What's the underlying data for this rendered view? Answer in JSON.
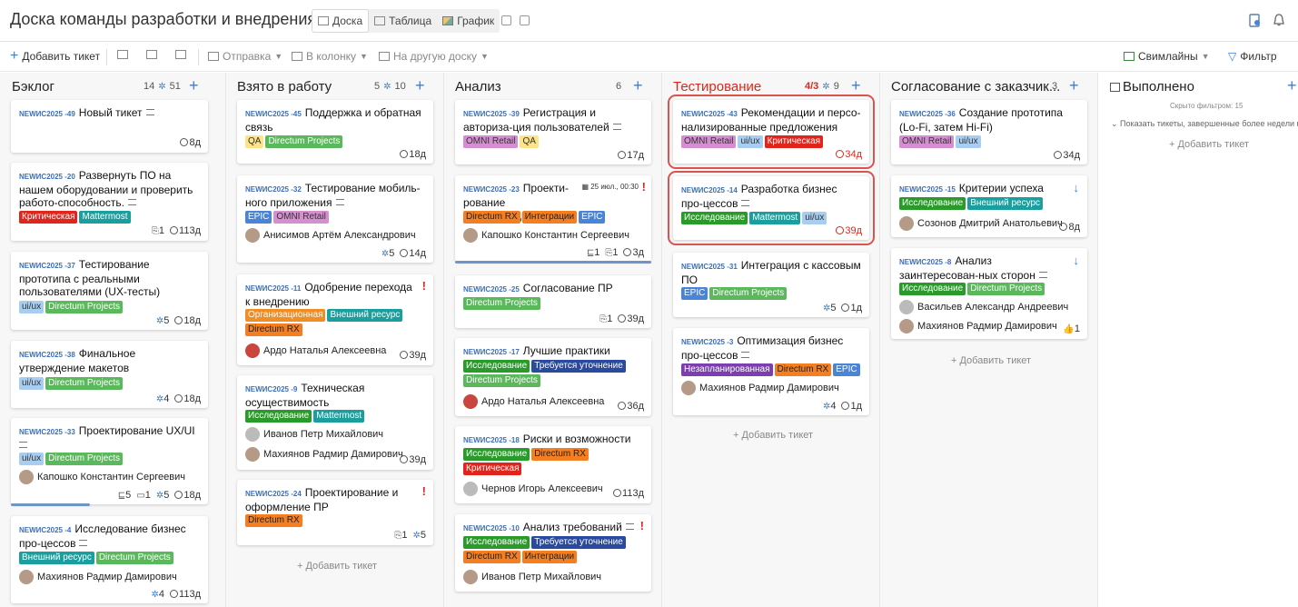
{
  "header": {
    "title": "Доска команды разработки и внедрения",
    "views": {
      "board": "Доска",
      "table": "Таблица",
      "chart": "График"
    }
  },
  "toolbar": {
    "add_ticket": "Добавить тикет",
    "send": "Отправка",
    "to_column": "В колонку",
    "to_board": "На другую доску",
    "swimlanes": "Свимлайны",
    "filter": "Фильтр"
  },
  "add_ticket_label": "Добавить тикет",
  "columns": [
    {
      "title": "Бэклог",
      "count": "14",
      "stories": "51"
    },
    {
      "title": "Взято в работу",
      "count": "5",
      "stories": "10"
    },
    {
      "title": "Анализ",
      "count": "6"
    },
    {
      "title": "Тестирование",
      "wip": "4/3",
      "stories": "9"
    },
    {
      "title": "Согласование с заказчик...",
      "count": "3"
    },
    {
      "title": "Выполнено",
      "hidden_note": "Скрыто фильтром: 15",
      "show_done_note": "Показать тикеты, завершенные более недели наз"
    }
  ],
  "cards": [
    {
      "id": "NEWИС2025 -49",
      "title": "Новый тикет",
      "time": "8д"
    },
    {
      "id": "NEWИС2025 -20",
      "title": "Развернуть ПО на нашем оборудовании и проверить работо-способность.",
      "tags": [
        "Критическая",
        "Mattermost"
      ],
      "attach": "1",
      "time": "113д"
    },
    {
      "id": "NEWИС2025 -37",
      "title": "Тестирование прототипа с реальными пользователями (UX-тесты)",
      "tags": [
        "ui/ux",
        "Directum Projects"
      ],
      "sp": "5",
      "time": "18д"
    },
    {
      "id": "NEWИС2025 -38",
      "title": "Финальное утверждение макетов",
      "tags": [
        "ui/ux",
        "Directum Projects"
      ],
      "sp": "4",
      "time": "18д"
    },
    {
      "id": "NEWИС2025 -33",
      "title": "Проектирование UX/UI",
      "tags": [
        "ui/ux",
        "Directum Projects"
      ],
      "assignee": "Капошко Константин Сергеевич",
      "sub": "5",
      "comments": "1",
      "sp": "5",
      "time": "18д"
    },
    {
      "id": "NEWИС2025 -4",
      "title": "Исследование бизнес про-цессов",
      "tags": [
        "Внешний ресурс",
        "Directum Projects"
      ],
      "assignee": "Махиянов Радмир Дамирович",
      "sp": "4",
      "time": "113д"
    },
    {
      "id": "NEWИС2025 -45",
      "title": "Поддержка и обратная связь",
      "tags": [
        "QA",
        "Directum Projects"
      ],
      "time": "18д"
    },
    {
      "id": "NEWИС2025 -32",
      "title": "Тестирование мобиль-ного приложения",
      "tags": [
        "EPIC",
        "OMNI Retail"
      ],
      "assignee": "Анисимов Артём Александрович",
      "sp": "5",
      "time": "14д"
    },
    {
      "id": "NEWИС2025 -11",
      "title": "Одобрение перехода к внедрению",
      "tags": [
        "Организационная",
        "Внешний ресурс",
        "Directum RX"
      ],
      "assignee": "Ардо Наталья Алексеевна",
      "time": "39д"
    },
    {
      "id": "NEWИС2025 -9",
      "title": "Техническая осуществимость",
      "tags": [
        "Исследование",
        "Mattermost"
      ],
      "assignee": "Иванов Петр Михайлович",
      "assignee2": "Махиянов Радмир Дамирович",
      "time": "39д"
    },
    {
      "id": "NEWИС2025 -24",
      "title": "Проектирование и оформление ПР",
      "tags": [
        "Directum RX"
      ],
      "attach": "1",
      "sp": "5"
    },
    {
      "id": "NEWИС2025 -39",
      "title": "Регистрация и авториза-ция пользователей",
      "tags": [
        "OMNI Retail",
        "QA"
      ],
      "time": "17д"
    },
    {
      "id": "NEWИС2025 -23",
      "title": "Проекти-рование модификаций",
      "due": "25 июл., 00:30",
      "tags": [
        "Directum RX",
        "Интеграции",
        "EPIC"
      ],
      "assignee": "Капошко Константин Сергеевич",
      "sub": "1",
      "attach": "1",
      "time": "3д"
    },
    {
      "id": "NEWИС2025 -25",
      "title": "Согласование ПР",
      "tags": [
        "Directum Projects"
      ],
      "attach": "1",
      "time": "39д"
    },
    {
      "id": "NEWИС2025 -17",
      "title": "Лучшие практики",
      "tags": [
        "Исследование",
        "Требуется уточнение",
        "Directum Projects"
      ],
      "assignee": "Ардо Наталья Алексеевна",
      "time": "36д"
    },
    {
      "id": "NEWИС2025 -18",
      "title": "Риски и возможности",
      "tags": [
        "Исследование",
        "Directum RX",
        "Критическая"
      ],
      "assignee": "Чернов Игорь Алексеевич",
      "time": "113д"
    },
    {
      "id": "NEWИС2025 -10",
      "title": "Анализ требований",
      "tags": [
        "Исследование",
        "Требуется уточнение",
        "Directum RX",
        "Интеграции"
      ],
      "assignee": "Иванов Петр Михайлович"
    },
    {
      "id": "NEWИС2025 -43",
      "title": "Рекомендации и персо-нализированные предложения",
      "tags": [
        "OMNI Retail",
        "ui/ux",
        "Критическая"
      ],
      "time": "34д"
    },
    {
      "id": "NEWИС2025 -14",
      "title": "Разработка бизнес про-цессов",
      "tags": [
        "Исследование",
        "Mattermost",
        "ui/ux"
      ],
      "time": "39д"
    },
    {
      "id": "NEWИС2025 -31",
      "title": "Интеграция с кассовым ПО",
      "tags": [
        "EPIC",
        "Directum Projects"
      ],
      "sp": "5",
      "time": "1д"
    },
    {
      "id": "NEWИС2025 -3",
      "title": "Оптимизация бизнес про-цессов",
      "tags": [
        "Незапланированная",
        "Directum RX",
        "EPIC"
      ],
      "assignee": "Махиянов Радмир Дамирович",
      "sp": "4",
      "time": "1д"
    },
    {
      "id": "NEWИС2025 -36",
      "title": "Создание прототипа (Lo-Fi, затем Hi-Fi)",
      "tags": [
        "OMNI Retail",
        "ui/ux"
      ],
      "time": "34д"
    },
    {
      "id": "NEWИС2025 -15",
      "title": "Критерии успеха",
      "tags": [
        "Исследование",
        "Внешний ресурс"
      ],
      "assignee": "Созонов Дмитрий Анатольевич",
      "time": "8д"
    },
    {
      "id": "NEWИС2025 -8",
      "title": "Анализ заинтересован-ных сторон",
      "tags": [
        "Исследование",
        "Directum Projects"
      ],
      "assignee": "Васильев Александр Андреевич",
      "assignee2": "Махиянов Радмир Дамирович",
      "likes": "1"
    }
  ]
}
